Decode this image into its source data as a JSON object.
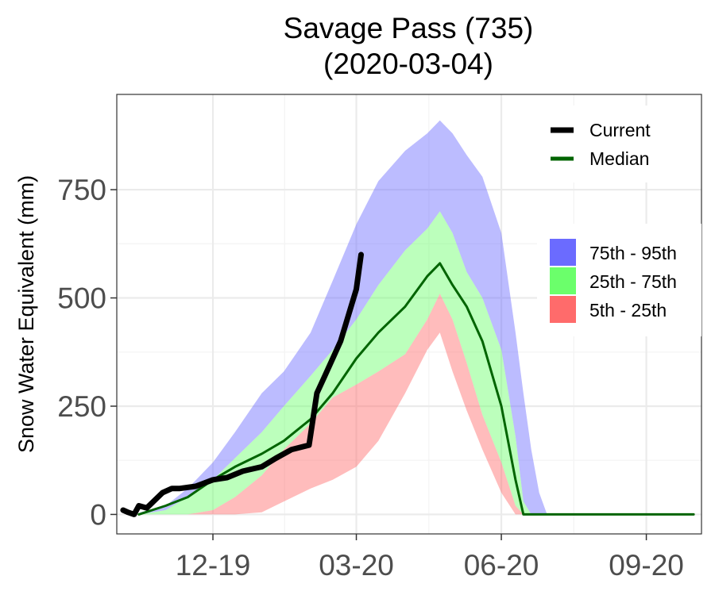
{
  "chart_data": {
    "type": "area",
    "title": "Savage Pass (735)",
    "subtitle": "(2020-03-04)",
    "xlabel": "",
    "ylabel": "Snow Water Equivalent (mm)",
    "x_ticks": [
      "12-19",
      "03-20",
      "06-20",
      "09-20"
    ],
    "y_ticks": [
      "0",
      "250",
      "500",
      "750"
    ],
    "ylim": [
      -45,
      970
    ],
    "xlim": [
      "2019-10-01",
      "2020-10-06"
    ],
    "grid": true,
    "legend_position": "right",
    "colors": {
      "current": "#000000",
      "median": "#006400",
      "p75_95": "#6b6bff",
      "p25_75": "#6bff6b",
      "p5_25": "#ff6b6b",
      "grid_major": "#ebebeb",
      "grid_minor": "#f4f4f4",
      "panel_border": "#333333"
    },
    "legend_lines": [
      {
        "label": "Current",
        "color": "#000000"
      },
      {
        "label": "Median",
        "color": "#006400"
      }
    ],
    "legend_bands": [
      {
        "label": "75th - 95th",
        "color": "#6b6bff"
      },
      {
        "label": "25th - 75th",
        "color": "#6bff6b"
      },
      {
        "label": "5th - 25th",
        "color": "#ff6b6b"
      }
    ],
    "percentiles": {
      "x": [
        "2019-10-16",
        "2019-11-01",
        "2019-11-15",
        "2019-12-01",
        "2019-12-15",
        "2020-01-01",
        "2020-01-15",
        "2020-02-01",
        "2020-02-15",
        "2020-03-01",
        "2020-03-15",
        "2020-04-01",
        "2020-04-15",
        "2020-04-23",
        "2020-05-01",
        "2020-05-10",
        "2020-05-20",
        "2020-06-01",
        "2020-06-10",
        "2020-06-15",
        "2020-06-20",
        "2020-06-25",
        "2020-06-30",
        "2020-07-02",
        "2020-07-10",
        "2020-10-01"
      ],
      "p5": [
        0,
        0,
        0,
        0,
        0,
        5,
        30,
        60,
        80,
        110,
        170,
        280,
        380,
        420,
        330,
        240,
        150,
        50,
        0,
        0,
        0,
        0,
        0,
        0,
        0,
        0
      ],
      "p25": [
        0,
        0,
        0,
        10,
        40,
        90,
        150,
        210,
        270,
        300,
        330,
        370,
        450,
        510,
        450,
        350,
        230,
        120,
        20,
        0,
        0,
        0,
        0,
        0,
        0,
        0
      ],
      "p75": [
        0,
        10,
        40,
        80,
        130,
        190,
        250,
        320,
        380,
        450,
        530,
        610,
        660,
        700,
        650,
        560,
        500,
        380,
        180,
        30,
        0,
        0,
        0,
        0,
        0,
        0
      ],
      "p95": [
        5,
        20,
        60,
        120,
        190,
        280,
        330,
        420,
        540,
        670,
        770,
        840,
        880,
        910,
        880,
        830,
        780,
        650,
        420,
        280,
        150,
        50,
        0,
        0,
        0,
        0
      ]
    },
    "series": [
      {
        "name": "Current",
        "x": [
          "2019-10-05",
          "2019-10-08",
          "2019-10-12",
          "2019-10-15",
          "2019-10-20",
          "2019-10-30",
          "2019-11-05",
          "2019-11-10",
          "2019-11-20",
          "2019-12-01",
          "2019-12-10",
          "2019-12-20",
          "2020-01-01",
          "2020-01-10",
          "2020-01-20",
          "2020-01-31",
          "2020-02-05",
          "2020-02-10",
          "2020-02-20",
          "2020-03-01",
          "2020-03-04"
        ],
        "values": [
          10,
          5,
          0,
          20,
          15,
          50,
          60,
          60,
          65,
          80,
          85,
          100,
          110,
          130,
          150,
          160,
          280,
          320,
          400,
          520,
          600
        ]
      },
      {
        "name": "Median",
        "x": [
          "2019-10-15",
          "2019-11-01",
          "2019-11-15",
          "2019-12-01",
          "2019-12-15",
          "2020-01-01",
          "2020-01-15",
          "2020-02-01",
          "2020-02-15",
          "2020-03-01",
          "2020-03-15",
          "2020-04-01",
          "2020-04-15",
          "2020-04-23",
          "2020-05-01",
          "2020-05-10",
          "2020-05-20",
          "2020-06-01",
          "2020-06-10",
          "2020-06-15",
          "2020-06-20",
          "2020-10-01"
        ],
        "values": [
          0,
          20,
          40,
          80,
          110,
          140,
          170,
          220,
          280,
          360,
          420,
          480,
          550,
          580,
          530,
          480,
          400,
          250,
          80,
          0,
          0,
          0
        ]
      }
    ]
  }
}
